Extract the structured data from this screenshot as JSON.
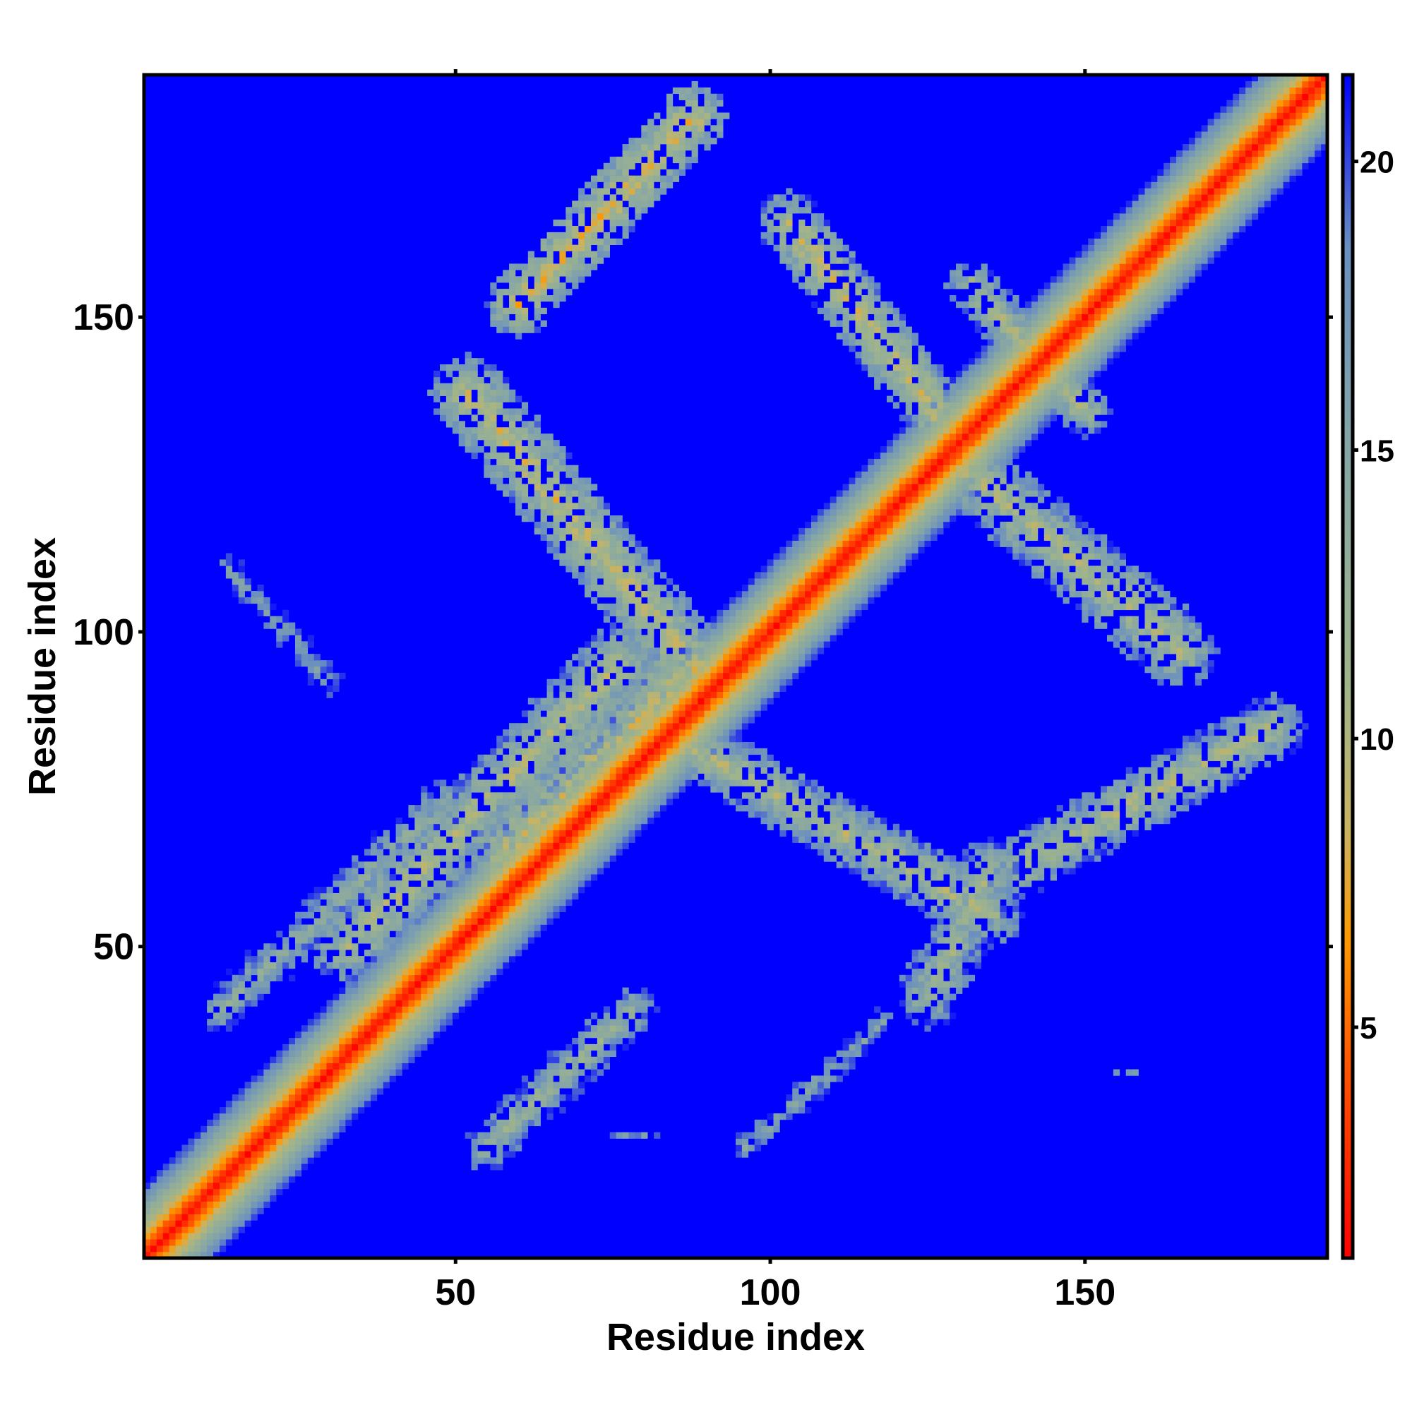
{
  "chart_data": {
    "type": "heatmap",
    "title": "",
    "xlabel": "Residue index",
    "ylabel": "Residue index",
    "xlim": [
      1,
      188
    ],
    "ylim": [
      1,
      188
    ],
    "x_ticks": [
      50,
      100,
      150
    ],
    "y_ticks": [
      50,
      100,
      150
    ],
    "x_tick_labels": [
      "50",
      "100",
      "150"
    ],
    "y_tick_labels": [
      "50",
      "100",
      "150"
    ],
    "colorbar": {
      "range": [
        1,
        21.5
      ],
      "ticks": [
        5,
        10,
        15,
        20
      ],
      "tick_labels": [
        "5",
        "10",
        "15",
        "20"
      ],
      "colors": [
        {
          "value": 1,
          "color": "#ff0000"
        },
        {
          "value": 4.5,
          "color": "#ff5a00"
        },
        {
          "value": 6.5,
          "color": "#ff9900"
        },
        {
          "value": 8.5,
          "color": "#c8b464"
        },
        {
          "value": 11,
          "color": "#9fb48c"
        },
        {
          "value": 15,
          "color": "#86a6a6"
        },
        {
          "value": 18.5,
          "color": "#6a8fc0"
        },
        {
          "value": 21.5,
          "color": "#0000ff"
        }
      ]
    },
    "background_color": "#0000ff",
    "grid": false,
    "regions": [
      {
        "name": "main diagonal",
        "from": [
          1,
          1
        ],
        "to": [
          188,
          188
        ],
        "width": 11,
        "min_value": 1
      },
      {
        "name": "segment",
        "from": [
          58,
          65
        ],
        "to": [
          85,
          92
        ],
        "width": 6,
        "min_value": 6
      },
      {
        "name": "segment",
        "from": [
          13,
          40
        ],
        "to": [
          48,
          73
        ],
        "width": 4,
        "min_value": 10
      },
      {
        "name": "segment",
        "from": [
          33,
          50
        ],
        "to": [
          76,
          95
        ],
        "width": 6,
        "min_value": 7
      },
      {
        "name": "segment",
        "from": [
          55,
          18
        ],
        "to": [
          78,
          40
        ],
        "width": 4,
        "min_value": 9
      },
      {
        "name": "segment",
        "from": [
          14,
          110
        ],
        "to": [
          30,
          92
        ],
        "width": 3,
        "min_value": 12
      },
      {
        "name": "segment",
        "from": [
          80,
          86
        ],
        "to": [
          135,
          55
        ],
        "width": 5,
        "min_value": 7
      },
      {
        "name": "segment",
        "from": [
          52,
          138
        ],
        "to": [
          90,
          92
        ],
        "width": 6,
        "min_value": 6
      },
      {
        "name": "segment",
        "from": [
          75,
          20
        ],
        "to": [
          82,
          20
        ],
        "width": 1,
        "min_value": 14
      },
      {
        "name": "segment",
        "from": [
          96,
          18
        ],
        "to": [
          118,
          38
        ],
        "width": 3,
        "min_value": 12
      },
      {
        "name": "segment",
        "from": [
          125,
          42
        ],
        "to": [
          135,
          62
        ],
        "width": 5,
        "min_value": 8
      },
      {
        "name": "segment",
        "from": [
          60,
          152
        ],
        "to": [
          88,
          182
        ],
        "width": 5,
        "min_value": 5
      },
      {
        "name": "segment",
        "from": [
          103,
          165
        ],
        "to": [
          128,
          133
        ],
        "width": 5,
        "min_value": 6
      },
      {
        "name": "segment",
        "from": [
          131,
          126
        ],
        "to": [
          165,
          97
        ],
        "width": 6,
        "min_value": 7
      },
      {
        "name": "segment",
        "from": [
          140,
          63
        ],
        "to": [
          180,
          85
        ],
        "width": 5,
        "min_value": 7
      },
      {
        "name": "segment",
        "from": [
          132,
          155
        ],
        "to": [
          150,
          135
        ],
        "width": 4,
        "min_value": 7
      },
      {
        "name": "segment",
        "from": [
          155,
          30
        ],
        "to": [
          158,
          30
        ],
        "width": 1,
        "min_value": 14
      }
    ]
  }
}
